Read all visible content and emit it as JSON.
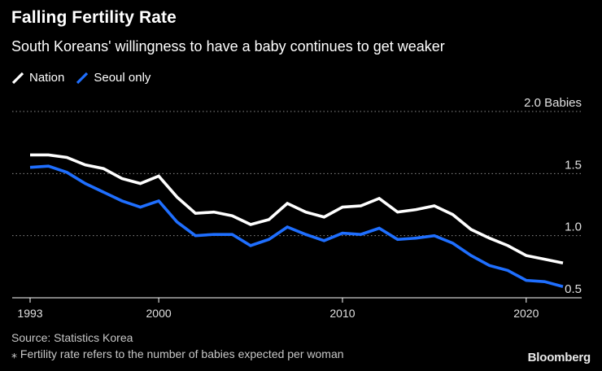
{
  "header": {
    "title": "Falling Fertility Rate",
    "subtitle": "South Koreans' willingness to have a baby continues to get weaker"
  },
  "legend": [
    {
      "label": "Nation",
      "color": "#ffffff",
      "icon": "slash-swatch-icon"
    },
    {
      "label": "Seoul only",
      "color": "#1f6fff",
      "icon": "slash-swatch-icon"
    }
  ],
  "footer": {
    "source": "Source: Statistics Korea",
    "note": "⁎ Fertility rate refers to the number of babies expected per woman",
    "brand": "Bloomberg"
  },
  "chart_data": {
    "type": "line",
    "title": "Falling Fertility Rate",
    "xlabel": "",
    "ylabel": "",
    "xlim": [
      1993,
      2022
    ],
    "ylim": [
      0.5,
      2.0
    ],
    "grid": true,
    "legend_position": "top-left",
    "y_ticks": [
      {
        "value": 0.5,
        "label": "0.5"
      },
      {
        "value": 1.0,
        "label": "1.0"
      },
      {
        "value": 1.5,
        "label": "1.5"
      },
      {
        "value": 2.0,
        "label": "2.0 Babies"
      }
    ],
    "x_ticks": [
      {
        "value": 1993,
        "label": "1993"
      },
      {
        "value": 2000,
        "label": "2000"
      },
      {
        "value": 2010,
        "label": "2010"
      },
      {
        "value": 2020,
        "label": "2020"
      }
    ],
    "x": [
      1993,
      1994,
      1995,
      1996,
      1997,
      1998,
      1999,
      2000,
      2001,
      2002,
      2003,
      2004,
      2005,
      2006,
      2007,
      2008,
      2009,
      2010,
      2011,
      2012,
      2013,
      2014,
      2015,
      2016,
      2017,
      2018,
      2019,
      2020,
      2021,
      2022
    ],
    "series": [
      {
        "name": "Nation",
        "color": "#ffffff",
        "values": [
          1.65,
          1.65,
          1.63,
          1.57,
          1.54,
          1.46,
          1.42,
          1.48,
          1.31,
          1.18,
          1.19,
          1.16,
          1.09,
          1.13,
          1.26,
          1.19,
          1.15,
          1.23,
          1.24,
          1.3,
          1.19,
          1.21,
          1.24,
          1.17,
          1.05,
          0.98,
          0.92,
          0.84,
          0.81,
          0.78
        ]
      },
      {
        "name": "Seoul only",
        "color": "#1f6fff",
        "values": [
          1.55,
          1.56,
          1.51,
          1.42,
          1.35,
          1.28,
          1.23,
          1.28,
          1.11,
          1.0,
          1.01,
          1.01,
          0.92,
          0.97,
          1.07,
          1.01,
          0.96,
          1.02,
          1.01,
          1.06,
          0.97,
          0.98,
          1.0,
          0.94,
          0.84,
          0.76,
          0.72,
          0.64,
          0.63,
          0.59
        ]
      }
    ]
  }
}
